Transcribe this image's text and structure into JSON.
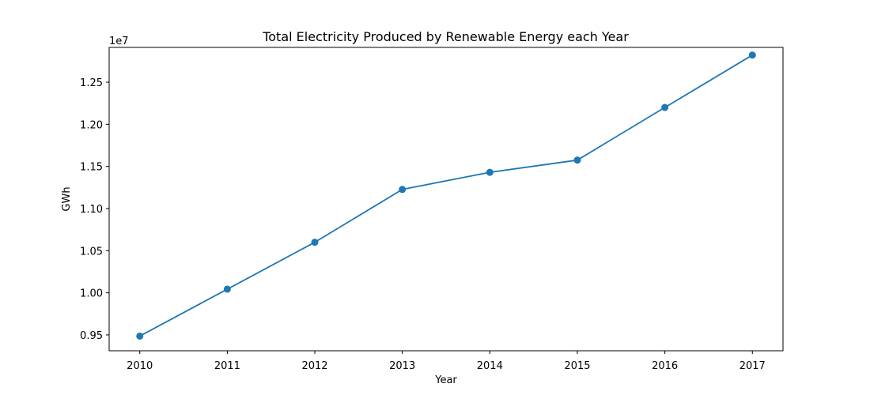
{
  "chart_data": {
    "type": "line",
    "title": "Total Electricity Produced by Renewable Energy each Year",
    "xlabel": "Year",
    "ylabel": "GWh",
    "y_offset_label": "1e7",
    "x": [
      2010,
      2011,
      2012,
      2013,
      2014,
      2015,
      2016,
      2017
    ],
    "x_tick_labels": [
      "2010",
      "2011",
      "2012",
      "2013",
      "2014",
      "2015",
      "2016",
      "2017"
    ],
    "y_ticks": [
      0.95,
      1.0,
      1.05,
      1.1,
      1.15,
      1.2,
      1.25
    ],
    "y_tick_labels": [
      "0.95",
      "1.00",
      "1.05",
      "1.10",
      "1.15",
      "1.20",
      "1.25"
    ],
    "ylim": [
      0.9312,
      1.2913
    ],
    "series": [
      {
        "values": [
          9486000,
          10043000,
          10600000,
          11227000,
          11430000,
          11575000,
          12200000,
          12822000
        ],
        "color": "#1f77b4",
        "marker": "circle"
      }
    ],
    "grid": false,
    "legend": "none"
  }
}
